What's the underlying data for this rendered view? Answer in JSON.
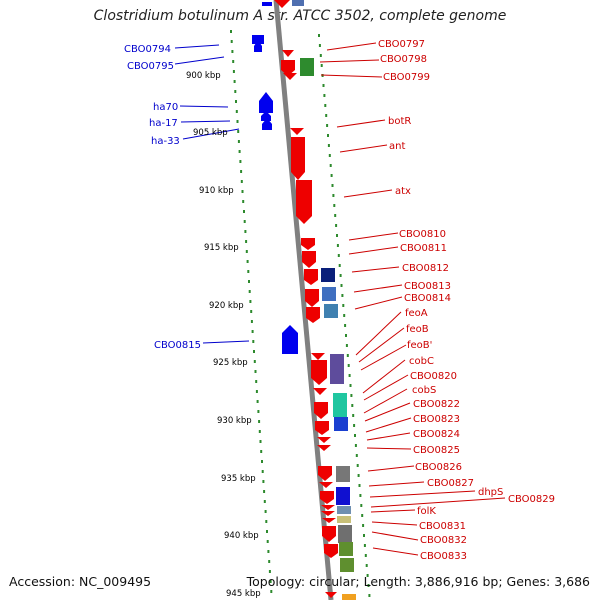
{
  "title": "Clostridium botulinum A str. ATCC 3502, complete genome",
  "footer": {
    "accession": "Accession: NC_009495",
    "stats": "Topology: circular; Length: 3,886,916 bp; Genes: 3,686"
  },
  "colors": {
    "backbone": "#808080",
    "forward_gene": "#ee0000",
    "reverse_gene": "#0000ee",
    "ruler_ticks": "#2d8a2d",
    "left_label": "#0000cc",
    "right_label": "#cc0000",
    "scale_label": "#000000"
  },
  "scale_labels": [
    "900 kbp",
    "905 kbp",
    "910 kbp",
    "915 kbp",
    "920 kbp",
    "925 kbp",
    "930 kbp",
    "935 kbp",
    "940 kbp",
    "945 kbp"
  ],
  "left_labels": [
    "CBO0794",
    "CBO0795",
    "ha70",
    "ha-17",
    "ha-33",
    "CBO0815"
  ],
  "right_labels": [
    "CBO0797",
    "CBO0798",
    "CBO0799",
    "botR",
    "ant",
    "atx",
    "CBO0810",
    "CBO0811",
    "CBO0812",
    "CBO0813",
    "CBO0814",
    "feoA",
    "feoB",
    "feoB'",
    "cobC",
    "CBO0820",
    "cobS",
    "CBO0822",
    "CBO0823",
    "CBO0824",
    "CBO0825",
    "CBO0826",
    "CBO0827",
    "dhpS",
    "CBO0829",
    "folK",
    "CBO0831",
    "CBO0832",
    "CBO0833"
  ]
}
